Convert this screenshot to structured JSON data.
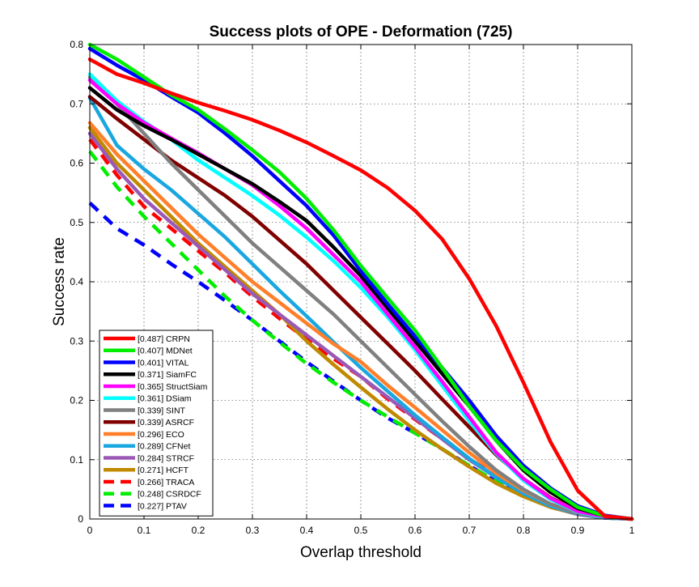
{
  "chart_data": {
    "type": "line",
    "title": "Success plots of OPE - Deformation (725)",
    "xlabel": "Overlap threshold",
    "ylabel": "Success rate",
    "xlim": [
      0,
      1
    ],
    "ylim": [
      0,
      0.8
    ],
    "xticks": [
      "0",
      "0.1",
      "0.2",
      "0.3",
      "0.4",
      "0.5",
      "0.6",
      "0.7",
      "0.8",
      "0.9",
      "1"
    ],
    "yticks": [
      "0",
      "0.1",
      "0.2",
      "0.3",
      "0.4",
      "0.5",
      "0.6",
      "0.7",
      "0.8"
    ],
    "grid": true,
    "legend_position": "bottom-left",
    "x": [
      0,
      0.05,
      0.1,
      0.15,
      0.2,
      0.25,
      0.3,
      0.35,
      0.4,
      0.45,
      0.5,
      0.55,
      0.6,
      0.65,
      0.7,
      0.75,
      0.8,
      0.85,
      0.9,
      0.95,
      1.0
    ],
    "series": [
      {
        "name": "CRPN",
        "legend": "[0.487] CRPN",
        "color": "#ff0000",
        "dashed": false,
        "values": [
          0.775,
          0.75,
          0.735,
          0.718,
          0.702,
          0.688,
          0.673,
          0.655,
          0.635,
          0.612,
          0.588,
          0.558,
          0.52,
          0.472,
          0.405,
          0.325,
          0.23,
          0.13,
          0.048,
          0.005,
          0.0
        ]
      },
      {
        "name": "MDNet",
        "legend": "[0.407] MDNet",
        "color": "#00ee00",
        "dashed": false,
        "values": [
          0.8,
          0.775,
          0.745,
          0.715,
          0.69,
          0.657,
          0.622,
          0.585,
          0.54,
          0.487,
          0.427,
          0.372,
          0.318,
          0.255,
          0.19,
          0.132,
          0.085,
          0.05,
          0.02,
          0.005,
          0.0
        ]
      },
      {
        "name": "VITAL",
        "legend": "[0.401] VITAL",
        "color": "#0000ff",
        "dashed": false,
        "values": [
          0.793,
          0.765,
          0.74,
          0.712,
          0.685,
          0.65,
          0.612,
          0.57,
          0.528,
          0.478,
          0.418,
          0.362,
          0.308,
          0.255,
          0.2,
          0.14,
          0.09,
          0.052,
          0.022,
          0.006,
          0.0
        ]
      },
      {
        "name": "SiamFC",
        "legend": "[0.371] SiamFC",
        "color": "#000000",
        "dashed": false,
        "values": [
          0.727,
          0.69,
          0.663,
          0.64,
          0.615,
          0.59,
          0.565,
          0.535,
          0.503,
          0.458,
          0.41,
          0.355,
          0.3,
          0.245,
          0.19,
          0.132,
          0.082,
          0.045,
          0.018,
          0.005,
          0.0
        ]
      },
      {
        "name": "StructSiam",
        "legend": "[0.365] StructSiam",
        "color": "#ff00ff",
        "dashed": false,
        "values": [
          0.74,
          0.7,
          0.668,
          0.642,
          0.617,
          0.59,
          0.563,
          0.528,
          0.49,
          0.445,
          0.4,
          0.345,
          0.29,
          0.232,
          0.172,
          0.112,
          0.068,
          0.035,
          0.013,
          0.004,
          0.0
        ]
      },
      {
        "name": "DSiam",
        "legend": "[0.361] DSiam",
        "color": "#00ffff",
        "dashed": false,
        "values": [
          0.75,
          0.705,
          0.67,
          0.64,
          0.605,
          0.575,
          0.545,
          0.512,
          0.475,
          0.435,
          0.39,
          0.34,
          0.285,
          0.225,
          0.165,
          0.11,
          0.065,
          0.033,
          0.012,
          0.003,
          0.0
        ]
      },
      {
        "name": "SINT",
        "legend": "[0.339] SINT",
        "color": "#808080",
        "dashed": false,
        "values": [
          0.745,
          0.7,
          0.65,
          0.6,
          0.555,
          0.51,
          0.465,
          0.425,
          0.385,
          0.345,
          0.3,
          0.255,
          0.21,
          0.165,
          0.122,
          0.082,
          0.05,
          0.025,
          0.01,
          0.003,
          0.0
        ]
      },
      {
        "name": "ASRCF",
        "legend": "[0.339] ASRCF",
        "color": "#800000",
        "dashed": false,
        "values": [
          0.712,
          0.675,
          0.64,
          0.605,
          0.575,
          0.545,
          0.51,
          0.47,
          0.43,
          0.385,
          0.34,
          0.295,
          0.25,
          0.202,
          0.155,
          0.108,
          0.068,
          0.036,
          0.014,
          0.004,
          0.0
        ]
      },
      {
        "name": "ECO",
        "legend": "[0.296] ECO",
        "color": "#ff7f2a",
        "dashed": false,
        "values": [
          0.668,
          0.615,
          0.57,
          0.525,
          0.48,
          0.44,
          0.4,
          0.365,
          0.33,
          0.295,
          0.265,
          0.225,
          0.188,
          0.15,
          0.112,
          0.077,
          0.048,
          0.025,
          0.01,
          0.003,
          0.0
        ]
      },
      {
        "name": "CFNet",
        "legend": "[0.289] CFNet",
        "color": "#1aa7e0",
        "dashed": false,
        "values": [
          0.71,
          0.63,
          0.59,
          0.555,
          0.515,
          0.475,
          0.43,
          0.385,
          0.342,
          0.298,
          0.255,
          0.215,
          0.175,
          0.138,
          0.102,
          0.07,
          0.043,
          0.022,
          0.009,
          0.002,
          0.0
        ]
      },
      {
        "name": "STRCF",
        "legend": "[0.284] STRCF",
        "color": "#9b59b6",
        "dashed": false,
        "values": [
          0.65,
          0.59,
          0.54,
          0.5,
          0.46,
          0.42,
          0.38,
          0.345,
          0.31,
          0.275,
          0.24,
          0.205,
          0.17,
          0.135,
          0.1,
          0.07,
          0.043,
          0.022,
          0.008,
          0.002,
          0.0
        ]
      },
      {
        "name": "HCFT",
        "legend": "[0.271] HCFT",
        "color": "#c08a00",
        "dashed": false,
        "values": [
          0.66,
          0.6,
          0.555,
          0.51,
          0.465,
          0.425,
          0.385,
          0.345,
          0.3,
          0.26,
          0.222,
          0.185,
          0.15,
          0.118,
          0.088,
          0.06,
          0.038,
          0.02,
          0.008,
          0.002,
          0.0
        ]
      },
      {
        "name": "TRACA",
        "legend": "[0.266] TRACA",
        "color": "#ff0000",
        "dashed": true,
        "values": [
          0.64,
          0.58,
          0.527,
          0.49,
          0.452,
          0.415,
          0.375,
          0.338,
          0.303,
          0.27,
          0.24,
          0.202,
          0.168,
          0.135,
          0.102,
          0.072,
          0.045,
          0.023,
          0.009,
          0.002,
          0.0
        ]
      },
      {
        "name": "CSRDCF",
        "legend": "[0.248] CSRDCF",
        "color": "#00ee00",
        "dashed": true,
        "values": [
          0.62,
          0.56,
          0.51,
          0.465,
          0.42,
          0.375,
          0.335,
          0.298,
          0.262,
          0.23,
          0.2,
          0.172,
          0.145,
          0.118,
          0.09,
          0.063,
          0.04,
          0.021,
          0.008,
          0.002,
          0.0
        ]
      },
      {
        "name": "PTAV",
        "legend": "[0.227] PTAV",
        "color": "#0000ff",
        "dashed": true,
        "values": [
          0.533,
          0.49,
          0.462,
          0.43,
          0.4,
          0.368,
          0.335,
          0.3,
          0.265,
          0.232,
          0.2,
          0.17,
          0.145,
          0.118,
          0.09,
          0.063,
          0.04,
          0.021,
          0.008,
          0.002,
          0.0
        ]
      }
    ]
  }
}
